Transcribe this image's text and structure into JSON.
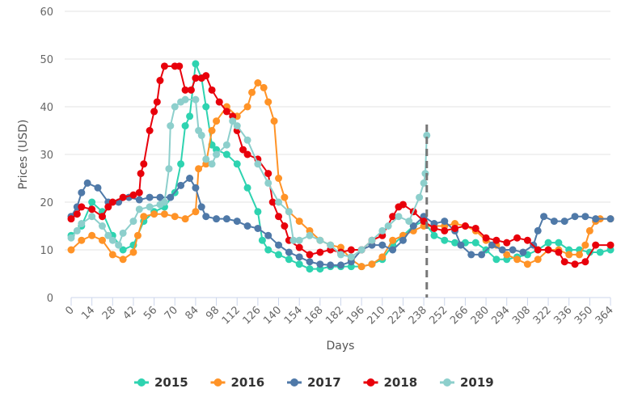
{
  "chart_data": {
    "type": "line",
    "title": "",
    "xlabel": "Days",
    "ylabel": "Prices (USD)",
    "xlim": [
      0,
      364
    ],
    "ylim": [
      0,
      60
    ],
    "x_ticks": [
      0,
      14,
      28,
      42,
      56,
      70,
      84,
      98,
      112,
      126,
      140,
      154,
      168,
      182,
      196,
      210,
      224,
      238,
      252,
      266,
      280,
      294,
      308,
      322,
      336,
      350,
      364
    ],
    "y_ticks": [
      0,
      10,
      20,
      30,
      40,
      50,
      60
    ],
    "grid": "horizontal",
    "legend_position": "bottom",
    "vertical_dashed_line_x": 240,
    "series": [
      {
        "name": "2015",
        "color": "#2ed3b0",
        "points": [
          [
            0,
            13
          ],
          [
            7,
            15
          ],
          [
            14,
            20
          ],
          [
            21,
            18
          ],
          [
            28,
            13
          ],
          [
            35,
            10
          ],
          [
            42,
            11
          ],
          [
            49,
            16
          ],
          [
            56,
            18
          ],
          [
            63,
            19
          ],
          [
            70,
            22
          ],
          [
            74,
            28
          ],
          [
            77,
            36
          ],
          [
            80,
            38
          ],
          [
            84,
            49
          ],
          [
            88,
            46
          ],
          [
            91,
            40
          ],
          [
            95,
            32
          ],
          [
            98,
            31
          ],
          [
            105,
            30
          ],
          [
            112,
            28
          ],
          [
            119,
            23
          ],
          [
            126,
            18
          ],
          [
            129,
            12
          ],
          [
            133,
            10
          ],
          [
            140,
            9
          ],
          [
            147,
            8
          ],
          [
            154,
            7
          ],
          [
            161,
            6
          ],
          [
            168,
            6
          ],
          [
            175,
            6.5
          ],
          [
            182,
            6.5
          ],
          [
            189,
            6.5
          ],
          [
            196,
            6.5
          ],
          [
            203,
            7
          ],
          [
            210,
            8
          ],
          [
            217,
            11
          ],
          [
            224,
            13
          ],
          [
            231,
            15
          ],
          [
            238,
            16
          ],
          [
            245,
            13
          ],
          [
            252,
            12
          ],
          [
            259,
            11.5
          ],
          [
            266,
            11.5
          ],
          [
            273,
            11.5
          ],
          [
            280,
            10
          ],
          [
            287,
            8
          ],
          [
            294,
            8
          ],
          [
            301,
            8.5
          ],
          [
            308,
            9
          ],
          [
            315,
            10
          ],
          [
            322,
            11.5
          ],
          [
            329,
            11.5
          ],
          [
            336,
            10
          ],
          [
            343,
            10
          ],
          [
            350,
            9.5
          ],
          [
            357,
            9.5
          ],
          [
            364,
            10
          ]
        ]
      },
      {
        "name": "2016",
        "color": "#ff9327",
        "points": [
          [
            0,
            10
          ],
          [
            7,
            12
          ],
          [
            14,
            13
          ],
          [
            21,
            12
          ],
          [
            28,
            9
          ],
          [
            35,
            8
          ],
          [
            42,
            9.5
          ],
          [
            45,
            13
          ],
          [
            49,
            17
          ],
          [
            56,
            17.5
          ],
          [
            63,
            17.5
          ],
          [
            70,
            17
          ],
          [
            77,
            16.5
          ],
          [
            84,
            18
          ],
          [
            86,
            27
          ],
          [
            91,
            28
          ],
          [
            95,
            35
          ],
          [
            98,
            37
          ],
          [
            105,
            40
          ],
          [
            112,
            38
          ],
          [
            119,
            40
          ],
          [
            122,
            43
          ],
          [
            126,
            45
          ],
          [
            130,
            44
          ],
          [
            133,
            41
          ],
          [
            137,
            37
          ],
          [
            140,
            25
          ],
          [
            144,
            21
          ],
          [
            147,
            18
          ],
          [
            154,
            16
          ],
          [
            161,
            14
          ],
          [
            168,
            12
          ],
          [
            175,
            11
          ],
          [
            182,
            10.5
          ],
          [
            189,
            8
          ],
          [
            196,
            6.5
          ],
          [
            203,
            7
          ],
          [
            210,
            8.5
          ],
          [
            217,
            12
          ],
          [
            224,
            13
          ],
          [
            231,
            14
          ],
          [
            238,
            15
          ],
          [
            245,
            15
          ],
          [
            252,
            15
          ],
          [
            259,
            15.5
          ],
          [
            266,
            15
          ],
          [
            273,
            14
          ],
          [
            280,
            12
          ],
          [
            287,
            11
          ],
          [
            294,
            9
          ],
          [
            301,
            8
          ],
          [
            308,
            7
          ],
          [
            315,
            8
          ],
          [
            322,
            10
          ],
          [
            329,
            10
          ],
          [
            336,
            9
          ],
          [
            343,
            9
          ],
          [
            347,
            11
          ],
          [
            350,
            14
          ],
          [
            354,
            16
          ],
          [
            357,
            16.5
          ],
          [
            364,
            16.5
          ]
        ]
      },
      {
        "name": "2017",
        "color": "#4f79a8",
        "points": [
          [
            0,
            17
          ],
          [
            4,
            19
          ],
          [
            7,
            22
          ],
          [
            11,
            24
          ],
          [
            18,
            23
          ],
          [
            25,
            20
          ],
          [
            32,
            20
          ],
          [
            39,
            21
          ],
          [
            46,
            20.5
          ],
          [
            53,
            21
          ],
          [
            60,
            21
          ],
          [
            67,
            21
          ],
          [
            74,
            23.5
          ],
          [
            80,
            25
          ],
          [
            84,
            23
          ],
          [
            88,
            19
          ],
          [
            91,
            17
          ],
          [
            98,
            16.5
          ],
          [
            105,
            16.5
          ],
          [
            112,
            16
          ],
          [
            119,
            15
          ],
          [
            126,
            14.5
          ],
          [
            133,
            13
          ],
          [
            140,
            11
          ],
          [
            147,
            9.5
          ],
          [
            154,
            8.5
          ],
          [
            161,
            7.5
          ],
          [
            168,
            7
          ],
          [
            175,
            6.8
          ],
          [
            182,
            6.8
          ],
          [
            189,
            7.5
          ],
          [
            196,
            10
          ],
          [
            203,
            11
          ],
          [
            210,
            11
          ],
          [
            217,
            10
          ],
          [
            224,
            12
          ],
          [
            231,
            15
          ],
          [
            238,
            17
          ],
          [
            245,
            15.5
          ],
          [
            252,
            16
          ],
          [
            259,
            14
          ],
          [
            263,
            11
          ],
          [
            270,
            9
          ],
          [
            277,
            9
          ],
          [
            284,
            11
          ],
          [
            291,
            10
          ],
          [
            298,
            10
          ],
          [
            305,
            9.5
          ],
          [
            312,
            11
          ],
          [
            315,
            14
          ],
          [
            319,
            17
          ],
          [
            326,
            16
          ],
          [
            333,
            16
          ],
          [
            340,
            17
          ],
          [
            347,
            17
          ],
          [
            354,
            16.5
          ],
          [
            364,
            16.5
          ]
        ]
      },
      {
        "name": "2018",
        "color": "#e8000b",
        "points": [
          [
            0,
            16.5
          ],
          [
            4,
            17.5
          ],
          [
            7,
            19
          ],
          [
            14,
            18.5
          ],
          [
            21,
            17
          ],
          [
            25,
            19
          ],
          [
            28,
            20
          ],
          [
            35,
            21
          ],
          [
            42,
            21.5
          ],
          [
            46,
            22
          ],
          [
            47,
            26
          ],
          [
            49,
            28
          ],
          [
            53,
            35
          ],
          [
            56,
            39
          ],
          [
            58,
            41
          ],
          [
            60,
            45.5
          ],
          [
            63,
            48.5
          ],
          [
            70,
            48.5
          ],
          [
            73,
            48.5
          ],
          [
            77,
            43.5
          ],
          [
            81,
            43.5
          ],
          [
            84,
            46
          ],
          [
            88,
            46
          ],
          [
            91,
            46.5
          ],
          [
            95,
            43.5
          ],
          [
            100,
            41
          ],
          [
            105,
            39
          ],
          [
            109,
            38
          ],
          [
            112,
            35
          ],
          [
            116,
            31
          ],
          [
            119,
            30
          ],
          [
            126,
            29
          ],
          [
            133,
            26
          ],
          [
            136,
            20
          ],
          [
            140,
            17
          ],
          [
            144,
            15
          ],
          [
            147,
            12
          ],
          [
            154,
            10.5
          ],
          [
            161,
            9
          ],
          [
            168,
            9.5
          ],
          [
            175,
            10
          ],
          [
            182,
            9.5
          ],
          [
            189,
            10
          ],
          [
            196,
            10
          ],
          [
            203,
            12
          ],
          [
            210,
            13
          ],
          [
            217,
            17
          ],
          [
            221,
            19
          ],
          [
            224,
            19.5
          ],
          [
            231,
            18
          ],
          [
            238,
            16
          ],
          [
            245,
            14.5
          ],
          [
            252,
            14
          ],
          [
            259,
            14.5
          ],
          [
            266,
            15
          ],
          [
            273,
            14.5
          ],
          [
            280,
            12.5
          ],
          [
            287,
            12
          ],
          [
            294,
            11.5
          ],
          [
            301,
            12.5
          ],
          [
            308,
            12
          ],
          [
            315,
            10
          ],
          [
            322,
            10
          ],
          [
            329,
            9.5
          ],
          [
            333,
            7.5
          ],
          [
            340,
            7
          ],
          [
            347,
            7.5
          ],
          [
            354,
            11
          ],
          [
            364,
            11
          ]
        ]
      },
      {
        "name": "2019",
        "color": "#8dcfcc",
        "points": [
          [
            0,
            12.5
          ],
          [
            4,
            14
          ],
          [
            7,
            15.5
          ],
          [
            14,
            17
          ],
          [
            21,
            15
          ],
          [
            25,
            13
          ],
          [
            28,
            12
          ],
          [
            32,
            11
          ],
          [
            35,
            13.5
          ],
          [
            42,
            16
          ],
          [
            46,
            18.5
          ],
          [
            53,
            19
          ],
          [
            60,
            19.5
          ],
          [
            63,
            20
          ],
          [
            66,
            27
          ],
          [
            67,
            36
          ],
          [
            70,
            40
          ],
          [
            74,
            41
          ],
          [
            77,
            41.5
          ],
          [
            84,
            41.5
          ],
          [
            86,
            35
          ],
          [
            88,
            34
          ],
          [
            91,
            29
          ],
          [
            95,
            28
          ],
          [
            98,
            30
          ],
          [
            105,
            32
          ],
          [
            109,
            37
          ],
          [
            112,
            36
          ],
          [
            119,
            33
          ],
          [
            126,
            28
          ],
          [
            133,
            24
          ],
          [
            140,
            20
          ],
          [
            147,
            18
          ],
          [
            150,
            12
          ],
          [
            154,
            12
          ],
          [
            161,
            13
          ],
          [
            168,
            12
          ],
          [
            175,
            11
          ],
          [
            182,
            9
          ],
          [
            189,
            8.5
          ],
          [
            196,
            10
          ],
          [
            203,
            12
          ],
          [
            210,
            14
          ],
          [
            214,
            15
          ],
          [
            221,
            17
          ],
          [
            228,
            16
          ],
          [
            235,
            21
          ],
          [
            238,
            24
          ],
          [
            239,
            26
          ],
          [
            240,
            34
          ]
        ]
      }
    ]
  }
}
